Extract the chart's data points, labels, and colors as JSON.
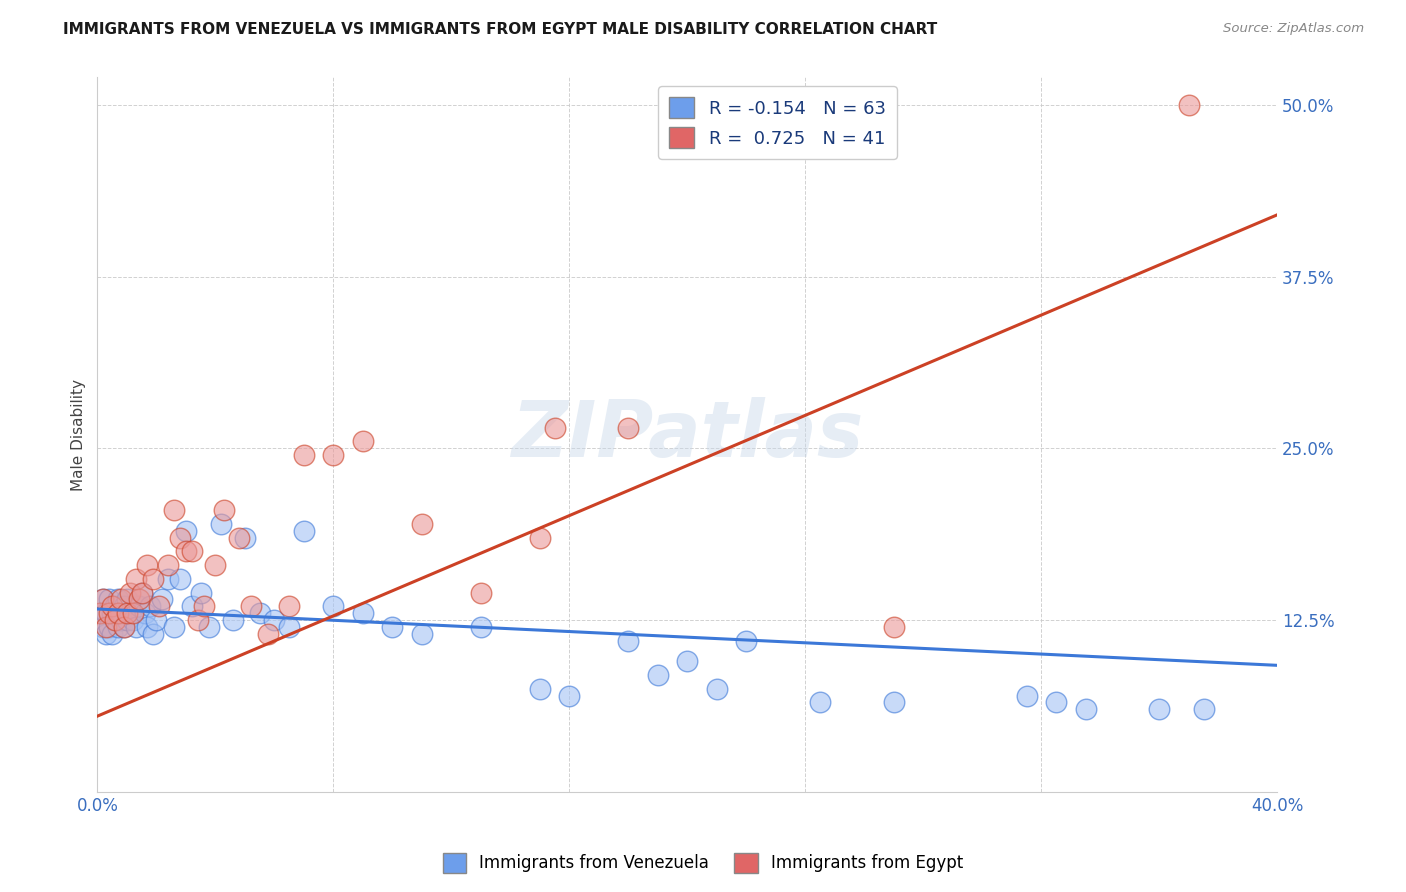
{
  "title": "IMMIGRANTS FROM VENEZUELA VS IMMIGRANTS FROM EGYPT MALE DISABILITY CORRELATION CHART",
  "source": "Source: ZipAtlas.com",
  "ylabel": "Male Disability",
  "xlim": [
    0.0,
    0.4
  ],
  "ylim": [
    0.0,
    0.52
  ],
  "xticks": [
    0.0,
    0.08,
    0.16,
    0.24,
    0.32,
    0.4
  ],
  "xticklabels": [
    "0.0%",
    "",
    "",
    "",
    "",
    "40.0%"
  ],
  "yticks": [
    0.0,
    0.125,
    0.25,
    0.375,
    0.5
  ],
  "yticklabels": [
    "",
    "12.5%",
    "25.0%",
    "37.5%",
    "50.0%"
  ],
  "venezuela_R": -0.154,
  "venezuela_N": 63,
  "egypt_R": 0.725,
  "egypt_N": 41,
  "venezuela_color": "#a4c2f4",
  "egypt_color": "#ea9999",
  "venezuela_line_color": "#3c78d8",
  "egypt_line_color": "#cc4125",
  "venezuela_legend_color": "#6d9eeb",
  "egypt_legend_color": "#e06666",
  "watermark": "ZIPatlas",
  "venezuela_x": [
    0.001,
    0.002,
    0.002,
    0.003,
    0.003,
    0.004,
    0.004,
    0.005,
    0.005,
    0.006,
    0.006,
    0.007,
    0.007,
    0.008,
    0.008,
    0.009,
    0.009,
    0.01,
    0.01,
    0.011,
    0.012,
    0.013,
    0.014,
    0.015,
    0.016,
    0.017,
    0.018,
    0.019,
    0.02,
    0.022,
    0.024,
    0.026,
    0.028,
    0.03,
    0.032,
    0.035,
    0.038,
    0.042,
    0.046,
    0.05,
    0.055,
    0.06,
    0.065,
    0.07,
    0.08,
    0.09,
    0.1,
    0.11,
    0.13,
    0.15,
    0.16,
    0.18,
    0.19,
    0.2,
    0.21,
    0.22,
    0.245,
    0.27,
    0.315,
    0.325,
    0.335,
    0.36,
    0.375
  ],
  "venezuela_y": [
    0.13,
    0.12,
    0.14,
    0.115,
    0.13,
    0.12,
    0.14,
    0.13,
    0.115,
    0.125,
    0.135,
    0.12,
    0.14,
    0.125,
    0.13,
    0.12,
    0.135,
    0.125,
    0.14,
    0.13,
    0.125,
    0.12,
    0.135,
    0.145,
    0.13,
    0.12,
    0.135,
    0.115,
    0.125,
    0.14,
    0.155,
    0.12,
    0.155,
    0.19,
    0.135,
    0.145,
    0.12,
    0.195,
    0.125,
    0.185,
    0.13,
    0.125,
    0.12,
    0.19,
    0.135,
    0.13,
    0.12,
    0.115,
    0.12,
    0.075,
    0.07,
    0.11,
    0.085,
    0.095,
    0.075,
    0.11,
    0.065,
    0.065,
    0.07,
    0.065,
    0.06,
    0.06,
    0.06
  ],
  "egypt_x": [
    0.001,
    0.002,
    0.003,
    0.004,
    0.005,
    0.006,
    0.007,
    0.008,
    0.009,
    0.01,
    0.011,
    0.012,
    0.013,
    0.014,
    0.015,
    0.017,
    0.019,
    0.021,
    0.024,
    0.026,
    0.028,
    0.03,
    0.032,
    0.034,
    0.036,
    0.04,
    0.043,
    0.048,
    0.052,
    0.058,
    0.065,
    0.07,
    0.08,
    0.09,
    0.11,
    0.13,
    0.15,
    0.155,
    0.18,
    0.27,
    0.37
  ],
  "egypt_y": [
    0.13,
    0.14,
    0.12,
    0.13,
    0.135,
    0.125,
    0.13,
    0.14,
    0.12,
    0.13,
    0.145,
    0.13,
    0.155,
    0.14,
    0.145,
    0.165,
    0.155,
    0.135,
    0.165,
    0.205,
    0.185,
    0.175,
    0.175,
    0.125,
    0.135,
    0.165,
    0.205,
    0.185,
    0.135,
    0.115,
    0.135,
    0.245,
    0.245,
    0.255,
    0.195,
    0.145,
    0.185,
    0.265,
    0.265,
    0.12,
    0.5
  ],
  "ven_line_x": [
    0.0,
    0.4
  ],
  "ven_line_y": [
    0.133,
    0.092
  ],
  "egy_line_x": [
    0.0,
    0.4
  ],
  "egy_line_y": [
    0.055,
    0.42
  ]
}
